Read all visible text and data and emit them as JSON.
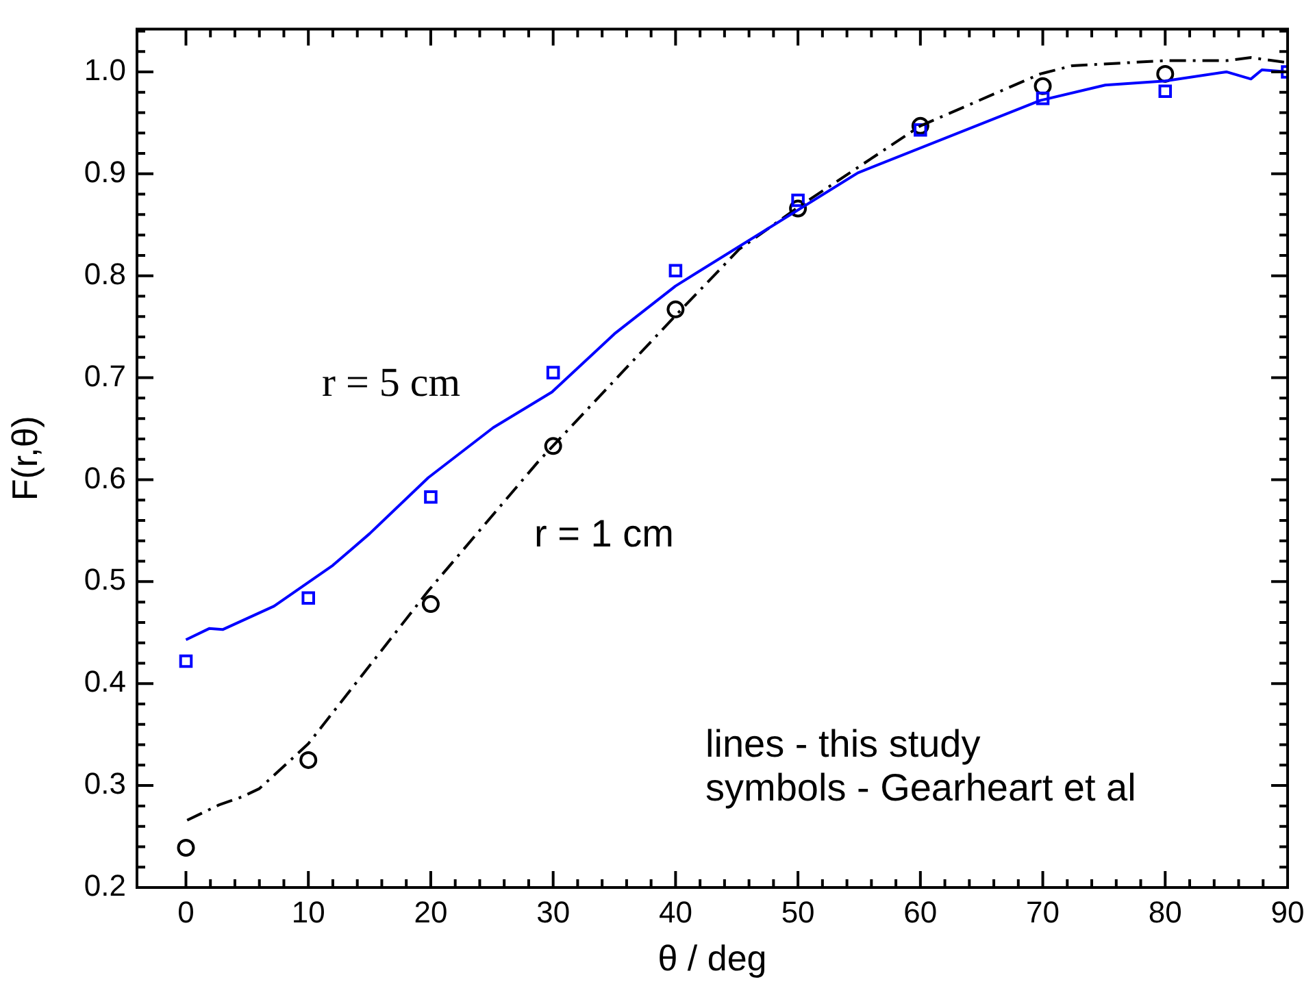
{
  "chart_data": {
    "type": "scatter",
    "xlabel": "θ / deg",
    "ylabel": "F(r,θ)",
    "xlim": [
      -4,
      90
    ],
    "ylim": [
      0.2,
      1.042
    ],
    "xticks": [
      0,
      {
        "value": 2,
        "label": null
      },
      {
        "value": 4,
        "label": null
      },
      {
        "value": 6,
        "label": null
      },
      {
        "value": 8,
        "label": null
      },
      10,
      {
        "value": 12,
        "label": null
      },
      {
        "value": 14,
        "label": null
      },
      {
        "value": 16,
        "label": null
      },
      {
        "value": 18,
        "label": null
      },
      20,
      {
        "value": 22,
        "label": null
      },
      {
        "value": 24,
        "label": null
      },
      {
        "value": 26,
        "label": null
      },
      {
        "value": 28,
        "label": null
      },
      30,
      {
        "value": 32,
        "label": null
      },
      {
        "value": 34,
        "label": null
      },
      {
        "value": 36,
        "label": null
      },
      {
        "value": 38,
        "label": null
      },
      40,
      {
        "value": 42,
        "label": null
      },
      {
        "value": 44,
        "label": null
      },
      {
        "value": 46,
        "label": null
      },
      {
        "value": 48,
        "label": null
      },
      50,
      {
        "value": 52,
        "label": null
      },
      {
        "value": 54,
        "label": null
      },
      {
        "value": 56,
        "label": null
      },
      {
        "value": 58,
        "label": null
      },
      60,
      {
        "value": 62,
        "label": null
      },
      {
        "value": 64,
        "label": null
      },
      {
        "value": 66,
        "label": null
      },
      {
        "value": 68,
        "label": null
      },
      70,
      {
        "value": 72,
        "label": null
      },
      {
        "value": 74,
        "label": null
      },
      {
        "value": 76,
        "label": null
      },
      {
        "value": 78,
        "label": null
      },
      80,
      {
        "value": 82,
        "label": null
      },
      {
        "value": 84,
        "label": null
      },
      {
        "value": 86,
        "label": null
      },
      {
        "value": 88,
        "label": null
      },
      90
    ],
    "yticks": [
      {
        "value": 0.2,
        "label": "0.2"
      },
      {
        "value": 0.22,
        "label": null
      },
      {
        "value": 0.24,
        "label": null
      },
      {
        "value": 0.26,
        "label": null
      },
      {
        "value": 0.28,
        "label": null
      },
      {
        "value": 0.3,
        "label": "0.3"
      },
      {
        "value": 0.32,
        "label": null
      },
      {
        "value": 0.34,
        "label": null
      },
      {
        "value": 0.36,
        "label": null
      },
      {
        "value": 0.38,
        "label": null
      },
      {
        "value": 0.4,
        "label": "0.4"
      },
      {
        "value": 0.42,
        "label": null
      },
      {
        "value": 0.44,
        "label": null
      },
      {
        "value": 0.46,
        "label": null
      },
      {
        "value": 0.48,
        "label": null
      },
      {
        "value": 0.5,
        "label": "0.5"
      },
      {
        "value": 0.52,
        "label": null
      },
      {
        "value": 0.54,
        "label": null
      },
      {
        "value": 0.56,
        "label": null
      },
      {
        "value": 0.58,
        "label": null
      },
      {
        "value": 0.6,
        "label": "0.6"
      },
      {
        "value": 0.62,
        "label": null
      },
      {
        "value": 0.64,
        "label": null
      },
      {
        "value": 0.66,
        "label": null
      },
      {
        "value": 0.68,
        "label": null
      },
      {
        "value": 0.7,
        "label": "0.7"
      },
      {
        "value": 0.72,
        "label": null
      },
      {
        "value": 0.74,
        "label": null
      },
      {
        "value": 0.76,
        "label": null
      },
      {
        "value": 0.78,
        "label": null
      },
      {
        "value": 0.8,
        "label": "0.8"
      },
      {
        "value": 0.82,
        "label": null
      },
      {
        "value": 0.84,
        "label": null
      },
      {
        "value": 0.86,
        "label": null
      },
      {
        "value": 0.88,
        "label": null
      },
      {
        "value": 0.9,
        "label": "0.9"
      },
      {
        "value": 0.92,
        "label": null
      },
      {
        "value": 0.94,
        "label": null
      },
      {
        "value": 0.96,
        "label": null
      },
      {
        "value": 0.98,
        "label": null
      },
      {
        "value": 1.0,
        "label": "1.0"
      },
      {
        "value": 1.02,
        "label": null
      },
      {
        "value": 1.04,
        "label": null
      }
    ],
    "grid": false,
    "legend": false,
    "series": [
      {
        "type": "line",
        "color": "#0000ff",
        "line_style": "solid",
        "marker": "none",
        "x": [
          0,
          1.9,
          3.0,
          7.2,
          12.0,
          15.0,
          19.8,
          25.1,
          29.9,
          35.1,
          40.0,
          54.9,
          69.8,
          75.1,
          80.0,
          85.0,
          87.0,
          87.9,
          90
        ],
        "values": [
          0.443,
          0.454,
          0.453,
          0.476,
          0.516,
          0.547,
          0.602,
          0.651,
          0.686,
          0.744,
          0.79,
          0.901,
          0.972,
          0.987,
          0.991,
          1.0,
          0.993,
          1.002,
          1.0
        ]
      },
      {
        "type": "line",
        "color": "#000000",
        "line_style": "dashed",
        "marker": "none",
        "x": [
          0.1,
          2.7,
          4.6,
          6.0,
          10.0,
          19.8,
          28.8,
          40.0,
          45.2,
          50.1,
          60.0,
          69.8,
          72.4,
          80.0,
          85.0,
          87.0,
          90
        ],
        "values": [
          0.266,
          0.281,
          0.289,
          0.297,
          0.341,
          0.491,
          0.618,
          0.761,
          0.826,
          0.868,
          0.947,
          0.998,
          1.006,
          1.011,
          1.011,
          1.014,
          1.009
        ]
      },
      {
        "type": "scatter",
        "color": "#0000ff",
        "marker": "square",
        "x": [
          0,
          10,
          20,
          30,
          40,
          50,
          60,
          70,
          80,
          90
        ],
        "values": [
          0.422,
          0.484,
          0.583,
          0.705,
          0.805,
          0.874,
          0.943,
          0.974,
          0.981,
          1.0
        ]
      },
      {
        "type": "scatter",
        "color": "#000000",
        "marker": "circle",
        "x": [
          0,
          10,
          20,
          30,
          40,
          50,
          60,
          70,
          80
        ],
        "values": [
          0.239,
          0.325,
          0.478,
          0.633,
          0.767,
          0.866,
          0.947,
          0.986,
          0.998
        ]
      }
    ],
    "annotations": [
      "r = 5 cm",
      "r = 1 cm",
      "lines - this study",
      "symbols - Gearheart et al"
    ]
  }
}
